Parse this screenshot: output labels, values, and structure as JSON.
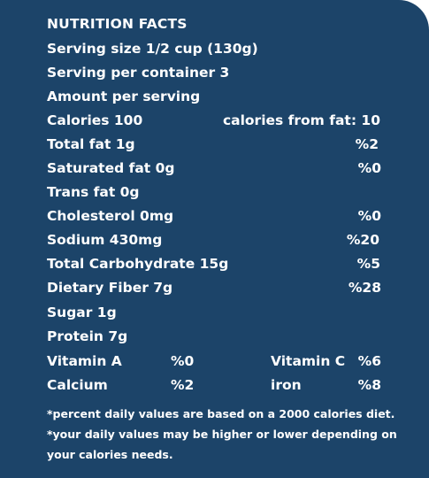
{
  "label": {
    "title": "NUTRITION FACTS",
    "serving_size": "Serving size 1/2 cup (130g)",
    "serving_per_container": "Serving per container 3",
    "amount_per_serving": "Amount per serving",
    "calories": "Calories 100",
    "calories_from_fat": "calories from fat: 10",
    "nutrients": [
      {
        "name": "Total fat 1g",
        "dv": "%2"
      },
      {
        "name": "Saturated fat 0g",
        "dv": "%0"
      },
      {
        "name": "Trans fat 0g",
        "dv": ""
      },
      {
        "name": "Cholesterol 0mg",
        "dv": "%0"
      },
      {
        "name": "Sodium 430mg",
        "dv": "%20"
      },
      {
        "name": "Total Carbohydrate 15g",
        "dv": "%5"
      },
      {
        "name": "Dietary Fiber 7g",
        "dv": "%28"
      },
      {
        "name": "Sugar 1g",
        "dv": ""
      },
      {
        "name": "Protein 7g",
        "dv": ""
      }
    ],
    "vitamins": [
      {
        "name": "Vitamin A",
        "dv": "%0"
      },
      {
        "name": "Vitamin C",
        "dv": "%6"
      },
      {
        "name": "Calcium",
        "dv": "%2"
      },
      {
        "name": "iron",
        "dv": "%8"
      }
    ],
    "footnotes": [
      "*percent daily values are based on a 2000 calories diet.",
      "*your daily values may be higher or lower depending on",
      "your calories needs."
    ]
  },
  "colors": {
    "background": "#1c4469",
    "text": "#ffffff"
  }
}
